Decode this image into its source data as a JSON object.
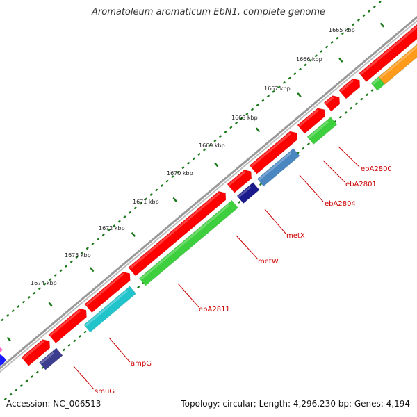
{
  "title": "Aromatoleum aromaticum EbN1, complete genome",
  "footer": {
    "accession": "Accession: NC_006513",
    "summary": "Topology: circular; Length: 4,296,230 bp; Genes: 4,194"
  },
  "colors": {
    "backbone": "#8c8c8c",
    "tick": "#1a7a1a",
    "gene_label": "#cc0000",
    "cds": "#ff0000",
    "functional_green": "#3ecf3e",
    "functional_steel": "#4a86c0",
    "functional_navy": "#1a1a8c",
    "functional_indigo": "#3d3d8f",
    "functional_cyan": "#22c4cc",
    "functional_orange": "#ff9a1a"
  },
  "kbp_labels": [
    "1665 kbp",
    "1666 kbp",
    "1667 kbp",
    "1668 kbp",
    "1669 kbp",
    "1670 kbp",
    "1671 kbp",
    "1672 kbp",
    "1673 kbp",
    "1674 kbp"
  ],
  "gene_labels": [
    "ebA2800",
    "ebA2801",
    "ebA2804",
    "metX",
    "metW",
    "ebA2811",
    "ampG",
    "smuG"
  ]
}
